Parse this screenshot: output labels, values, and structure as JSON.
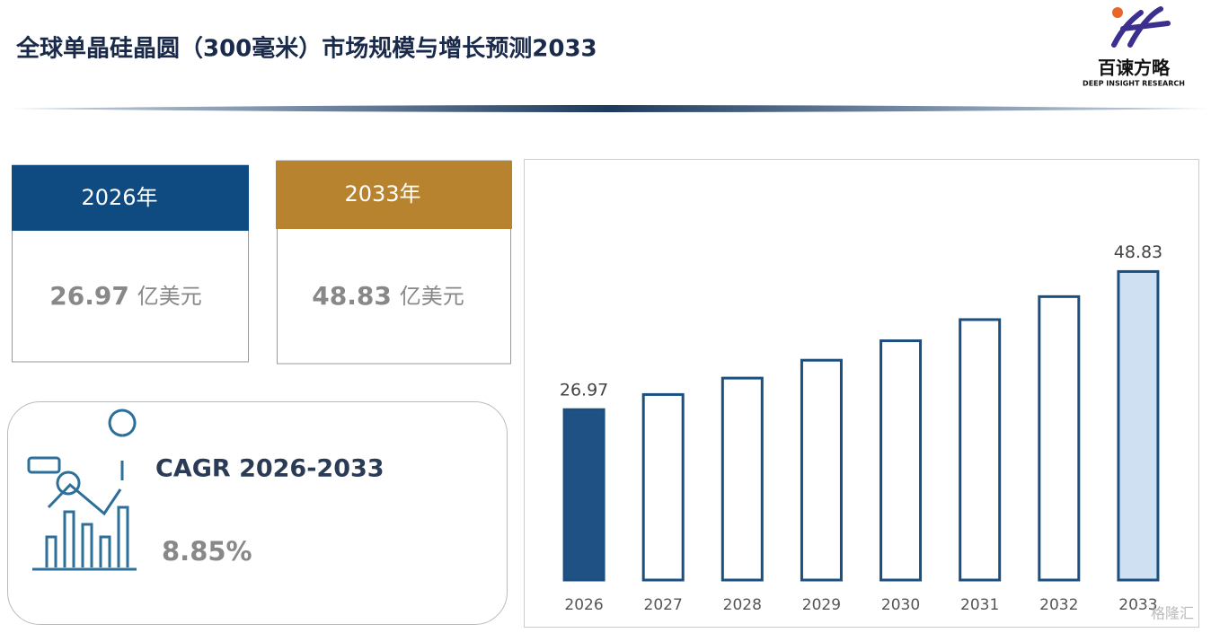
{
  "header": {
    "title": "全球单晶硅晶圆（300毫米）市场规模与增长预测2033",
    "logo_name": "百谏方略",
    "logo_tagline": "DEEP INSIGHT RESEARCH"
  },
  "cards": [
    {
      "header": "2026年",
      "value": 26.97,
      "unit": "亿美元"
    },
    {
      "header": "2033年",
      "value": 48.83,
      "unit": "亿美元"
    }
  ],
  "cagr": {
    "label": "CAGR 2026-2033",
    "value": "8.85%"
  },
  "watermark": "格隆汇",
  "chart_data": {
    "type": "bar",
    "categories": [
      "2026",
      "2027",
      "2028",
      "2029",
      "2030",
      "2031",
      "2032",
      "2033"
    ],
    "values": [
      26.97,
      29.36,
      31.96,
      34.79,
      37.87,
      41.22,
      44.86,
      48.83
    ],
    "value_labels": [
      "26.97",
      null,
      null,
      null,
      null,
      null,
      null,
      "48.83"
    ],
    "colors": [
      "#1f5185",
      "#ffffff",
      "#ffffff",
      "#ffffff",
      "#ffffff",
      "#ffffff",
      "#ffffff",
      "#cfe0f3"
    ],
    "edge_color": "#1b4f80",
    "ylim": [
      0,
      55
    ]
  }
}
